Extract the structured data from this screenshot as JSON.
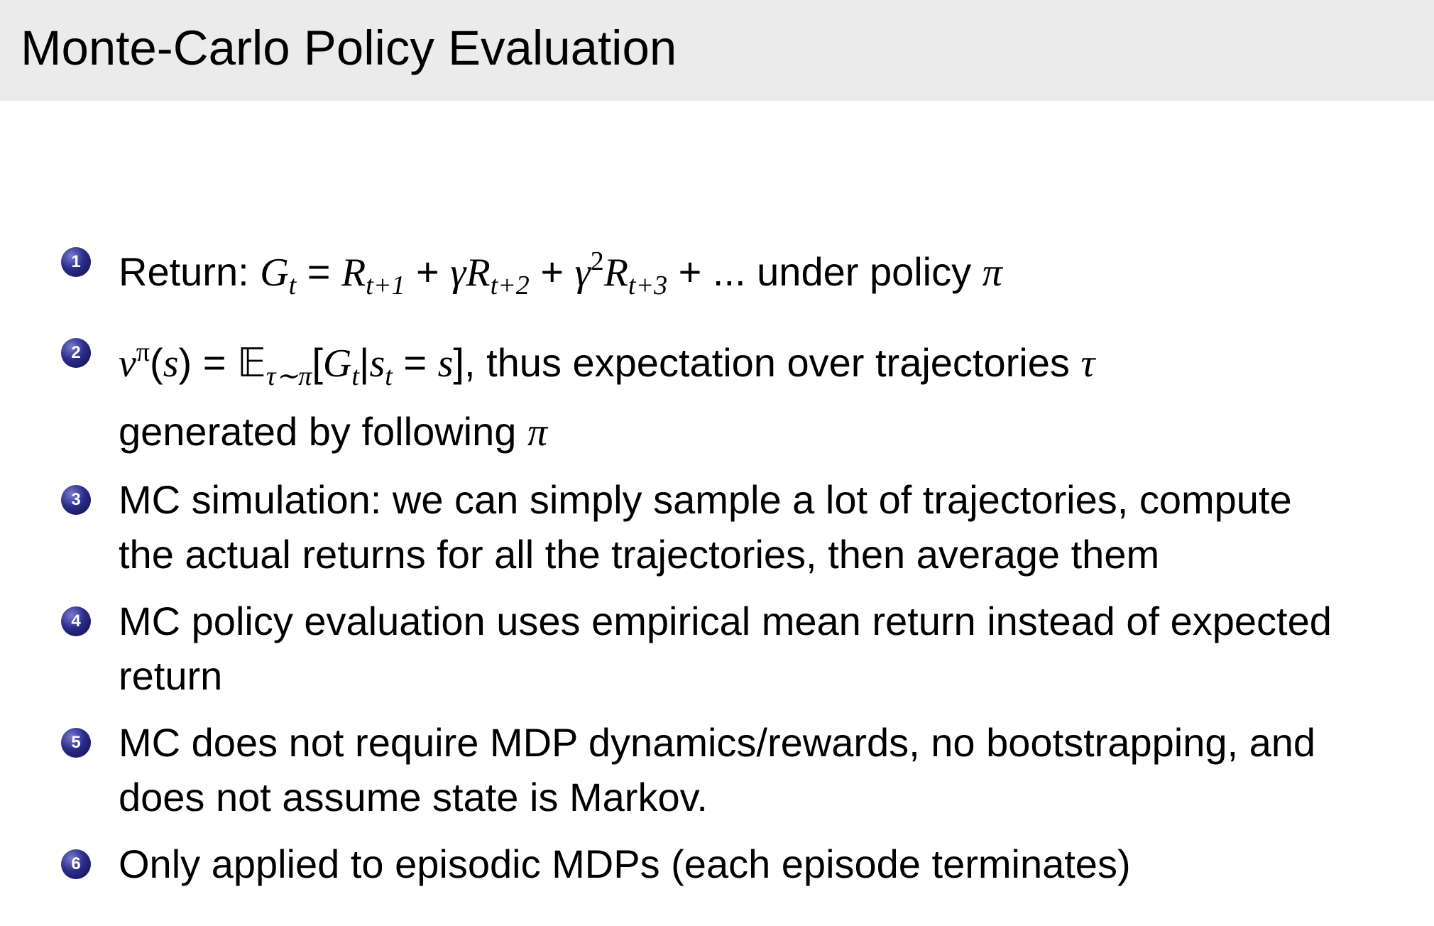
{
  "slide": {
    "title": "Monte-Carlo Policy Evaluation",
    "bullet_style": {
      "shape": "ball",
      "color": "#1e1e78",
      "number_color": "#ffffff"
    },
    "items": [
      {
        "number": "1",
        "segments": [
          [
            "Return:  ",
            "r"
          ],
          [
            "G",
            "i"
          ],
          [
            "t",
            "sub"
          ],
          [
            " = ",
            "r"
          ],
          [
            "R",
            "i"
          ],
          [
            "t+1",
            "sub"
          ],
          [
            " + ",
            "r"
          ],
          [
            "γR",
            "i"
          ],
          [
            "t+2",
            "sub"
          ],
          [
            " + ",
            "r"
          ],
          [
            "γ",
            "i"
          ],
          [
            "2",
            "sup"
          ],
          [
            "R",
            "i"
          ],
          [
            "t+3",
            "sub"
          ],
          [
            " + ... under policy ",
            "r"
          ],
          [
            "π",
            "i"
          ]
        ]
      },
      {
        "number": "2",
        "segments": [
          [
            "v",
            "i"
          ],
          [
            "π",
            "sup"
          ],
          [
            "(",
            "r"
          ],
          [
            "s",
            "i"
          ],
          [
            ") = ",
            "r"
          ],
          [
            "𝔼",
            "r"
          ],
          [
            "τ∼π",
            "sub"
          ],
          [
            "[",
            "r"
          ],
          [
            "G",
            "i"
          ],
          [
            "t",
            "sub"
          ],
          [
            "|",
            "r"
          ],
          [
            "s",
            "i"
          ],
          [
            "t",
            "sub"
          ],
          [
            " = ",
            "r"
          ],
          [
            "s",
            "i"
          ],
          [
            "], thus expectation over trajectories ",
            "r"
          ],
          [
            "τ",
            "i"
          ],
          [
            "",
            "br"
          ],
          [
            "generated by following ",
            "r"
          ],
          [
            "π",
            "i"
          ]
        ]
      },
      {
        "number": "3",
        "segments": [
          [
            "MC simulation: we can simply sample a lot of trajectories, compute",
            "r"
          ],
          [
            "",
            "br"
          ],
          [
            "the actual returns for all the trajectories, then average them",
            "r"
          ]
        ]
      },
      {
        "number": "4",
        "segments": [
          [
            "MC policy evaluation uses empirical mean return instead of expected",
            "r"
          ],
          [
            "",
            "br"
          ],
          [
            "return",
            "r"
          ]
        ]
      },
      {
        "number": "5",
        "segments": [
          [
            "MC does not require MDP dynamics/rewards, no bootstrapping, and",
            "r"
          ],
          [
            "",
            "br"
          ],
          [
            "does not assume state is Markov.",
            "r"
          ]
        ]
      },
      {
        "number": "6",
        "segments": [
          [
            "Only applied to episodic MDPs (each episode terminates)",
            "r"
          ]
        ]
      }
    ]
  }
}
